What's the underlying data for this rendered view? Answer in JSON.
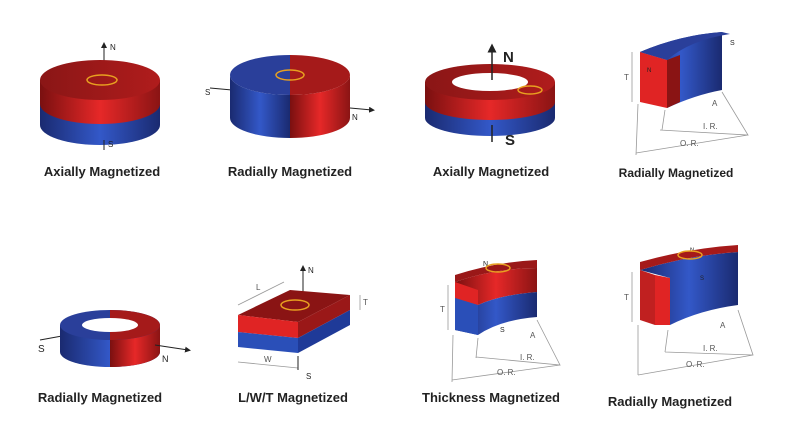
{
  "colors": {
    "north_red": "#e02424",
    "dark_red": "#8a1414",
    "south_blue": "#2a4fb8",
    "dark_blue": "#1a2a70"
  },
  "items": [
    {
      "caption": "Axially Magnetized",
      "labels": {
        "n": "N",
        "s": "S"
      }
    },
    {
      "caption": "Radially Magnetized",
      "labels": {
        "n": "N",
        "s": "S"
      }
    },
    {
      "caption": "Axially Magnetized",
      "labels": {
        "n": "N",
        "s": "S"
      }
    },
    {
      "caption": "Radially Magnetized",
      "labels": {
        "n": "N",
        "s": "S",
        "t": "T",
        "a": "A",
        "ir": "I. R.",
        "or": "O. R."
      }
    },
    {
      "caption": "Radially Magnetized",
      "labels": {
        "n": "N",
        "s": "S"
      }
    },
    {
      "caption": "L/W/T Magnetized",
      "labels": {
        "n": "N",
        "s": "S",
        "l": "L",
        "w": "W",
        "t": "T"
      }
    },
    {
      "caption": "Thickness Magnetized",
      "labels": {
        "n": "N",
        "s": "S",
        "t": "T",
        "a": "A",
        "ir": "I. R.",
        "or": "O. R."
      }
    },
    {
      "caption": "Radially Magnetized",
      "labels": {
        "n": "N",
        "s": "S",
        "t": "T",
        "a": "A",
        "ir": "I. R.",
        "or": "O. R."
      }
    }
  ]
}
